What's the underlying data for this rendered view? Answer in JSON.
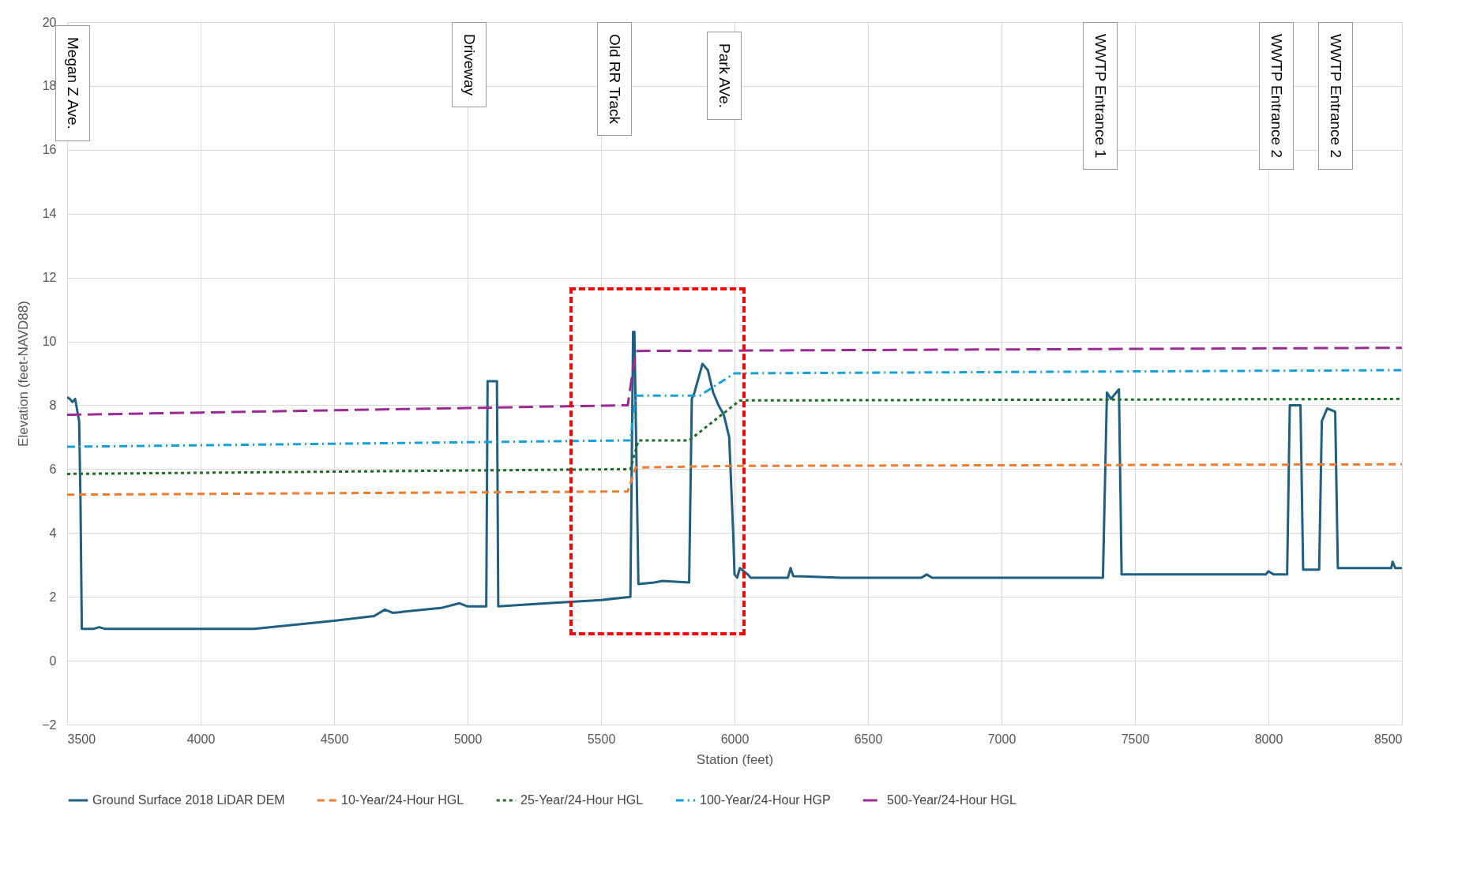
{
  "chart_data": {
    "type": "line",
    "xlabel": "Station (feet)",
    "ylabel": "Elevation (feet-NAVD88)",
    "xlim": [
      3500,
      8500
    ],
    "xticks": [
      3500,
      4000,
      4500,
      5000,
      5500,
      6000,
      6500,
      7000,
      7500,
      8000,
      8500
    ],
    "marker": "none",
    "ylim": [
      -2,
      20
    ],
    "yticks": [
      -2,
      0,
      2,
      4,
      6,
      8,
      10,
      12,
      14,
      16,
      18,
      20
    ],
    "grid": true,
    "legend": "bottom",
    "series": [
      {
        "name": "Ground Surface 2018 LiDAR DEM",
        "color": "#1f5f7f",
        "line_style": "solid",
        "x": [
          3500,
          3510,
          3520,
          3530,
          3545,
          3550,
          3555,
          3600,
          3620,
          3640,
          4200,
          4500,
          4650,
          4690,
          4720,
          4900,
          4970,
          5000,
          5070,
          5075,
          5110,
          5115,
          5300,
          5500,
          5610,
          5620,
          5625,
          5640,
          5700,
          5730,
          5830,
          5840,
          5850,
          5880,
          5900,
          5920,
          5940,
          5960,
          5980,
          5995,
          6000,
          6010,
          6020,
          6050,
          6060,
          6200,
          6210,
          6220,
          6400,
          6700,
          6720,
          6740,
          7380,
          7395,
          7410,
          7440,
          7450,
          7990,
          8000,
          8020,
          8070,
          8080,
          8120,
          8130,
          8190,
          8200,
          8220,
          8250,
          8260,
          8460,
          8465,
          8475,
          8500
        ],
        "values": [
          8.25,
          8.2,
          8.1,
          8.2,
          7.5,
          5,
          1.0,
          1.0,
          1.05,
          1.0,
          1.0,
          1.25,
          1.4,
          1.6,
          1.5,
          1.65,
          1.8,
          1.7,
          1.7,
          8.75,
          8.75,
          1.7,
          1.8,
          1.9,
          2.0,
          10.3,
          10.3,
          2.4,
          2.45,
          2.5,
          2.45,
          8.2,
          8.4,
          9.3,
          9.1,
          8.4,
          8.0,
          7.7,
          7.0,
          4,
          2.7,
          2.6,
          2.9,
          2.7,
          2.6,
          2.6,
          2.9,
          2.65,
          2.6,
          2.6,
          2.7,
          2.6,
          2.6,
          8.4,
          8.2,
          8.5,
          2.7,
          2.7,
          2.8,
          2.7,
          2.7,
          8.0,
          8.0,
          2.85,
          2.85,
          7.5,
          7.9,
          7.8,
          2.9,
          2.9,
          3.1,
          2.9,
          2.9
        ]
      },
      {
        "name": "10-Year/24-Hour HGL",
        "color": "#ed7d31",
        "line_style": "dashed",
        "x": [
          3500,
          5600,
          5630,
          6000,
          8500
        ],
        "values": [
          5.2,
          5.3,
          6.05,
          6.1,
          6.15
        ]
      },
      {
        "name": "25-Year/24-Hour HGL",
        "color": "#1e6b24",
        "line_style": "dotted",
        "x": [
          3500,
          5610,
          5640,
          5830,
          6020,
          8500
        ],
        "values": [
          5.85,
          6.0,
          6.9,
          6.9,
          8.15,
          8.2
        ]
      },
      {
        "name": "100-Year/24-Hour HGP",
        "color": "#16a0d8",
        "line_style": "dashdot",
        "x": [
          3500,
          5610,
          5630,
          5870,
          6000,
          8500
        ],
        "values": [
          6.7,
          6.9,
          8.3,
          8.3,
          9.0,
          9.1
        ]
      },
      {
        "name": "500-Year/24-Hour HGL",
        "color": "#9b2a92",
        "line_style": "longdash",
        "x": [
          3500,
          5600,
          5630,
          8500
        ],
        "values": [
          7.7,
          8.0,
          9.7,
          9.8
        ]
      }
    ],
    "annotations": [
      "Megan Z Ave.",
      "Driveway",
      "Old RR Track",
      "Park AVe.",
      "WWTP Entrance 1",
      "WWTP Entrance 2",
      "WWTP Entrance 2"
    ]
  }
}
